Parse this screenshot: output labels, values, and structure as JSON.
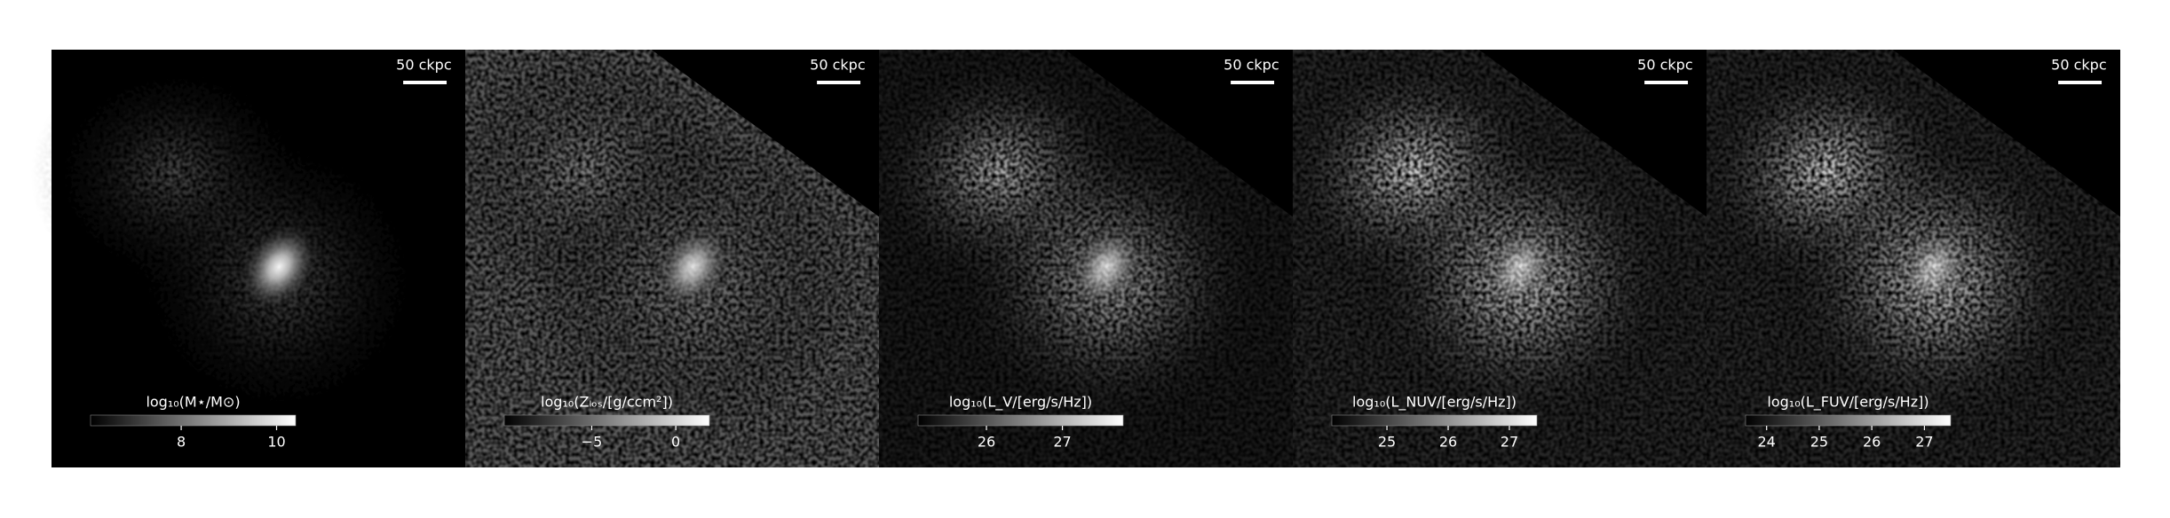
{
  "chart_data": [
    {
      "type": "image",
      "scale_label": "50 ckpc",
      "colorbar_label": "log₁₀(M⋆/M⊙)",
      "clim": [
        6.1,
        10.4
      ],
      "cticks": [
        8,
        10
      ]
    },
    {
      "type": "image",
      "scale_label": "50 ckpc",
      "colorbar_label": "log₁₀(Zₗₒₛ/[g/ccm²])",
      "clim": [
        -10.2,
        2.0
      ],
      "cticks": [
        {
          "value": -5,
          "label": "−5"
        },
        0
      ]
    },
    {
      "type": "image",
      "scale_label": "50 ckpc",
      "colorbar_label": "log₁₀(L_V/[erg/s/Hz])",
      "clim": [
        25.1,
        27.8
      ],
      "cticks": [
        26,
        27
      ]
    },
    {
      "type": "image",
      "scale_label": "50 ckpc",
      "colorbar_label": "log₁₀(L_NUV/[erg/s/Hz])",
      "clim": [
        24.1,
        27.45
      ],
      "cticks": [
        25,
        26,
        27
      ]
    },
    {
      "type": "image",
      "scale_label": "50 ckpc",
      "colorbar_label": "log₁₀(L_FUV/[erg/s/Hz])",
      "clim": [
        23.6,
        27.5
      ],
      "cticks": [
        24,
        25,
        26,
        27
      ]
    }
  ]
}
